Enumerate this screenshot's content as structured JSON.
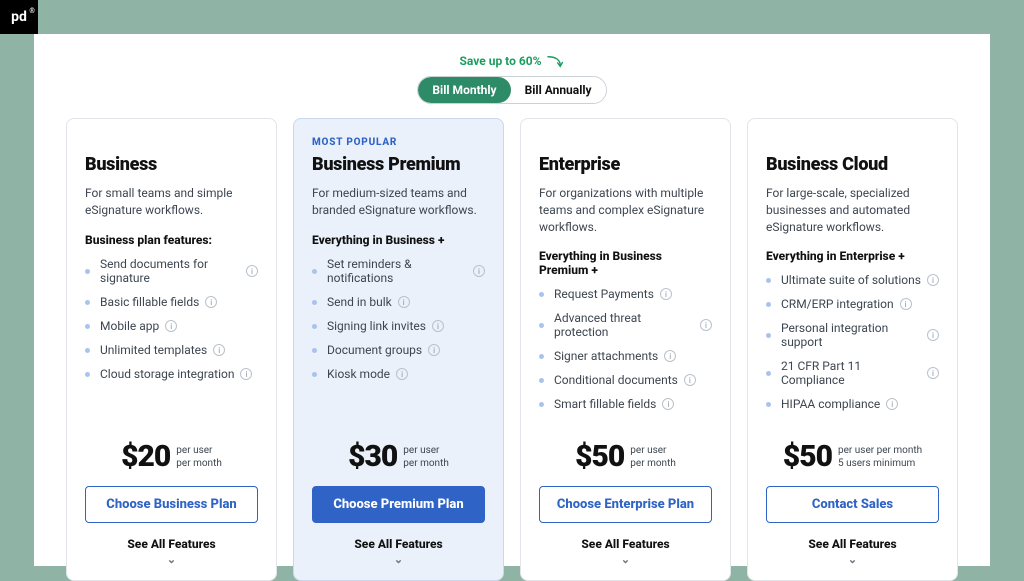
{
  "colors": {
    "page_bg": "#8fb3a5",
    "sheet_bg": "#ffffff",
    "accent_green": "#2e8b68",
    "accent_blue": "#2f63c6",
    "featured_bg": "#eaf1fb",
    "bullet": "#a9c3ee",
    "border": "#e1e5e9"
  },
  "logo_text": "pd",
  "save_banner": "Save up to 60%",
  "toggle": {
    "monthly": "Bill Monthly",
    "annually": "Bill Annually",
    "active": "monthly"
  },
  "see_all_label": "See All Features",
  "plans": [
    {
      "badge": "",
      "featured": false,
      "title": "Business",
      "tagline": "For small teams and simple eSignature workflows.",
      "heading": "Business plan features:",
      "features": [
        "Send documents for signature",
        "Basic fillable fields",
        "Mobile app",
        "Unlimited templates",
        "Cloud storage integration"
      ],
      "price": "$20",
      "per_line1": "per user",
      "per_line2": "per month",
      "cta": "Choose Business Plan",
      "cta_primary": false
    },
    {
      "badge": "MOST POPULAR",
      "featured": true,
      "title": "Business Premium",
      "tagline": "For medium-sized teams and branded eSignature workflows.",
      "heading": "Everything in Business +",
      "features": [
        "Set reminders & notifications",
        "Send in bulk",
        "Signing link invites",
        "Document groups",
        "Kiosk mode"
      ],
      "price": "$30",
      "per_line1": "per user",
      "per_line2": "per month",
      "cta": "Choose Premium Plan",
      "cta_primary": true
    },
    {
      "badge": "",
      "featured": false,
      "title": "Enterprise",
      "tagline": "For organizations with multiple teams and complex eSignature workflows.",
      "heading": "Everything in Business Premium +",
      "features": [
        "Request Payments",
        "Advanced threat protection",
        "Signer attachments",
        "Conditional documents",
        "Smart fillable fields"
      ],
      "price": "$50",
      "per_line1": "per user",
      "per_line2": "per month",
      "cta": "Choose Enterprise Plan",
      "cta_primary": false
    },
    {
      "badge": "",
      "featured": false,
      "title": "Business Cloud",
      "tagline": "For large-scale, specialized businesses and automated eSignature workflows.",
      "heading": "Everything in Enterprise +",
      "features": [
        "Ultimate suite of solutions",
        "CRM/ERP integration",
        "Personal integration support",
        "21 CFR Part 11 Compliance",
        "HIPAA compliance"
      ],
      "price": "$50",
      "per_line1": "per user per month",
      "per_line2": "5 users minimum",
      "cta": "Contact Sales",
      "cta_primary": false
    }
  ]
}
